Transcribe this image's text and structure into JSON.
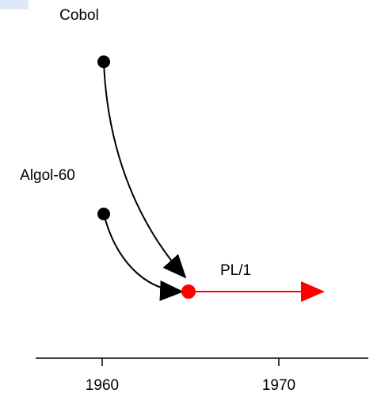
{
  "nodes": [
    {
      "label": "Cobol"
    },
    {
      "label": "Algol-60"
    },
    {
      "label": "PL/1"
    }
  ],
  "axis": {
    "ticks": [
      "1960",
      "1970"
    ]
  }
}
